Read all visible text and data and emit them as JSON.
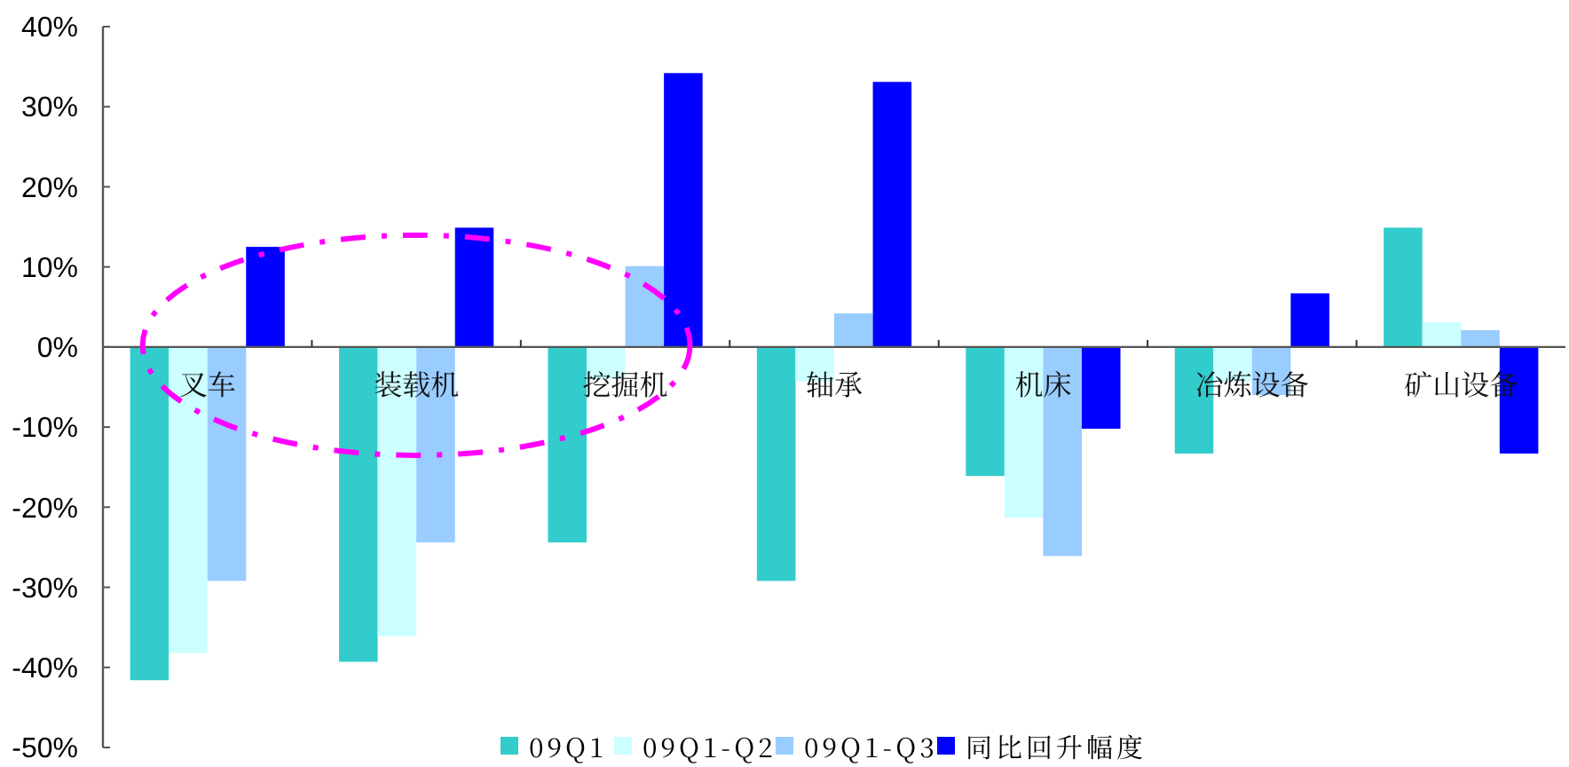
{
  "chart_data": {
    "type": "bar",
    "categories": [
      "叉车",
      "装载机",
      "挖掘机",
      "轴承",
      "机床",
      "冶炼设备",
      "矿山设备"
    ],
    "series": [
      {
        "name": "09Q1",
        "color": "#33cccc",
        "values": [
          -41.6,
          -39.3,
          -24.4,
          -29.2,
          -16.1,
          -13.3,
          14.9
        ]
      },
      {
        "name": "09Q1-Q2",
        "color": "#ccffff",
        "values": [
          -38.2,
          -36.1,
          -4,
          -4.3,
          -21.3,
          -4.3,
          3.1
        ]
      },
      {
        "name": "09Q1-Q3",
        "color": "#99ccff",
        "values": [
          -29.2,
          -24.4,
          10.1,
          4.2,
          -26.1,
          -6,
          2.1
        ]
      },
      {
        "name": "同比回升幅度",
        "color": "#0000ff",
        "values": [
          12.5,
          14.9,
          34.2,
          33.1,
          -10.2,
          6.7,
          -13.3
        ]
      }
    ],
    "ylim": [
      -50,
      40
    ],
    "yticks": [
      {
        "value": -50,
        "label": "-50%"
      },
      {
        "value": -40,
        "label": "-40%"
      },
      {
        "value": -30,
        "label": "-30%"
      },
      {
        "value": -20,
        "label": "-20%"
      },
      {
        "value": -10,
        "label": "-10%"
      },
      {
        "value": 0,
        "label": "0%"
      },
      {
        "value": 10,
        "label": "10%"
      },
      {
        "value": 20,
        "label": "20%"
      },
      {
        "value": 30,
        "label": "30%"
      },
      {
        "value": 40,
        "label": "40%"
      }
    ],
    "legend": "bottom"
  }
}
